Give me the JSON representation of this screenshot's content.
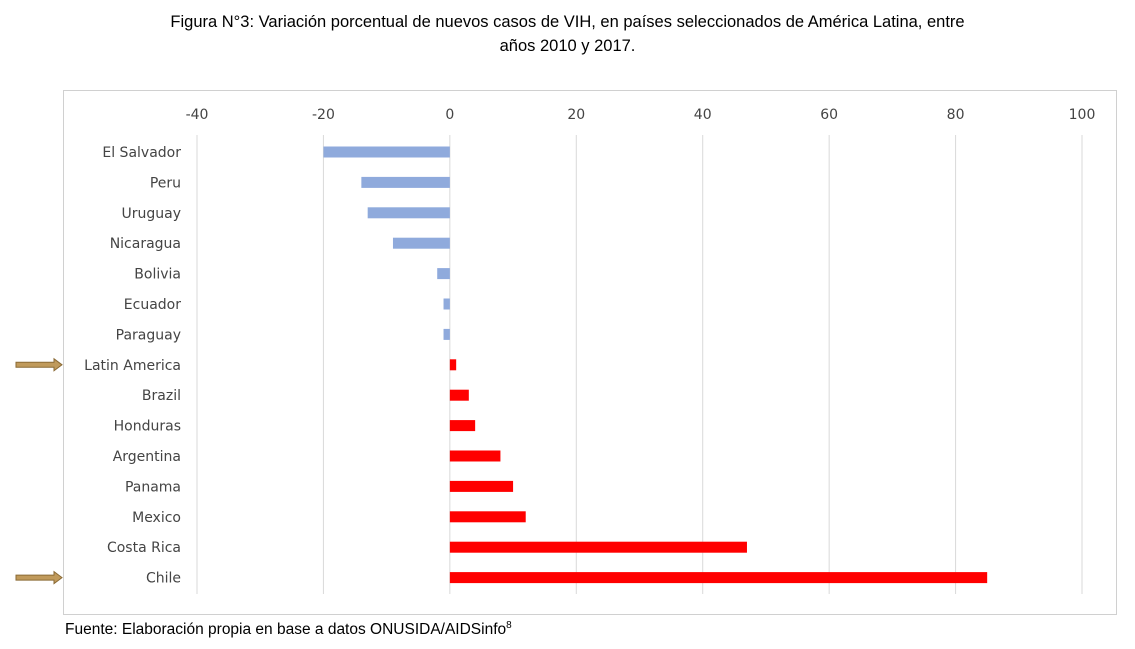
{
  "figure": {
    "title_line1": "Figura N°3: Variación porcentual de nuevos casos de VIH, en países seleccionados de América Latina, entre",
    "title_line2": "años 2010 y 2017.",
    "source": "Fuente: Elaboración propia en base a datos ONUSIDA/AIDSinfo",
    "source_footnote": "8"
  },
  "chart_data": {
    "type": "bar",
    "orientation": "horizontal",
    "title": "Figura N°3: Variación porcentual de nuevos casos de VIH, en países seleccionados de América Latina, entre años 2010 y 2017.",
    "xlabel": "",
    "ylabel": "",
    "xlim": [
      -40,
      100
    ],
    "xticks": [
      -40,
      -20,
      0,
      20,
      40,
      60,
      80,
      100
    ],
    "tick_labels": [
      "-40",
      "-20",
      "0",
      "20",
      "40",
      "60",
      "80",
      "100"
    ],
    "xaxis_position": "top",
    "grid": true,
    "legend": "none",
    "categories": [
      "El Salvador",
      "Peru",
      "Uruguay",
      "Nicaragua",
      "Bolivia",
      "Ecuador",
      "Paraguay",
      "Latin America",
      "Brazil",
      "Honduras",
      "Argentina",
      "Panama",
      "Mexico",
      "Costa Rica",
      "Chile"
    ],
    "values": [
      -20,
      -14,
      -13,
      -9,
      -2,
      -1,
      -1,
      1,
      3,
      4,
      8,
      10,
      12,
      47,
      85
    ],
    "highlighted": [
      "Latin America",
      "Chile"
    ],
    "colors": {
      "negative": "#8faadc",
      "positive": "#ff0000",
      "grid": "#d9d9d9",
      "arrow": "#c09a5b",
      "arrow_outline": "#8a6a35"
    }
  }
}
